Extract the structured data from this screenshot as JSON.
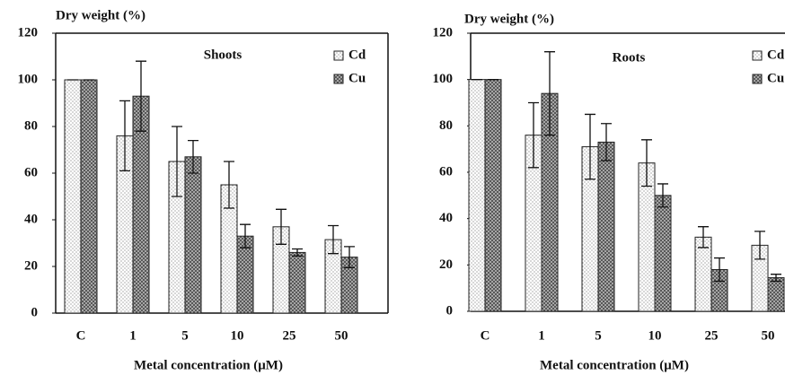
{
  "chart_data": [
    {
      "type": "bar",
      "title": "Shoots",
      "y_label": "Dry weight (%)",
      "x_label": "Metal concentration (μM)",
      "categories": [
        "C",
        "1",
        "5",
        "10",
        "25",
        "50"
      ],
      "series": [
        {
          "name": "Cd",
          "values": [
            100,
            76,
            65,
            55,
            37,
            31.5
          ],
          "errors": [
            0,
            15,
            15,
            10,
            7.5,
            6
          ]
        },
        {
          "name": "Cu",
          "values": [
            100,
            93,
            67,
            33,
            26,
            24
          ],
          "errors": [
            0,
            15,
            7,
            5,
            1.5,
            4.5
          ]
        }
      ],
      "ylim": [
        0,
        120
      ],
      "yticks": [
        0,
        20,
        40,
        60,
        80,
        100,
        120
      ]
    },
    {
      "type": "bar",
      "title": "Roots",
      "y_label": "Dry weight (%)",
      "x_label": "Metal concentration (μM)",
      "categories": [
        "C",
        "1",
        "5",
        "10",
        "25",
        "50"
      ],
      "series": [
        {
          "name": "Cd",
          "values": [
            100,
            76,
            71,
            64,
            32,
            28.5
          ],
          "errors": [
            0,
            14,
            14,
            10,
            4.5,
            6
          ]
        },
        {
          "name": "Cu",
          "values": [
            100,
            94,
            73,
            50,
            18,
            14.5
          ],
          "errors": [
            0,
            18,
            8,
            5,
            5,
            1.5
          ]
        }
      ],
      "ylim": [
        0,
        120
      ],
      "yticks": [
        0,
        20,
        40,
        60,
        80,
        100,
        120
      ]
    }
  ]
}
